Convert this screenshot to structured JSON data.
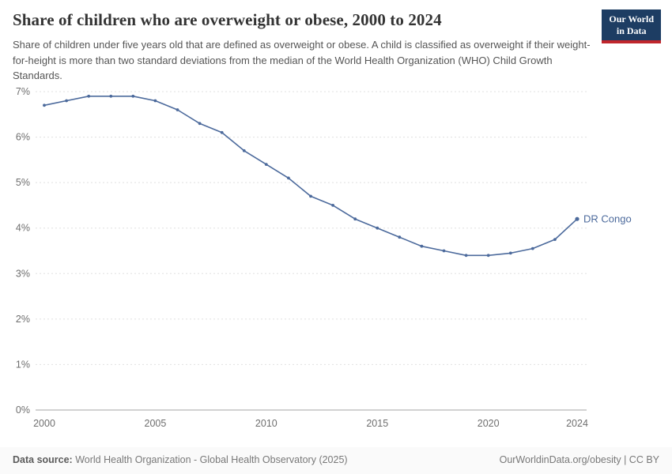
{
  "header": {
    "title": "Share of children who are overweight or obese, 2000 to 2024",
    "subtitle": "Share of children under five years old that are defined as overweight or obese. A child is classified as overweight if their weight-for-height is more than two standard deviations from the median of the World Health Organization (WHO) Child Growth Standards.",
    "logo": {
      "line1": "Our World",
      "line2": "in Data"
    }
  },
  "chart_data": {
    "type": "line",
    "title": "Share of children who are overweight or obese, 2000 to 2024",
    "xlabel": "",
    "ylabel": "",
    "xlim": [
      2000,
      2024
    ],
    "ylim": [
      0,
      7
    ],
    "x_ticks": [
      2000,
      2005,
      2010,
      2015,
      2020,
      2024
    ],
    "y_ticks": [
      0,
      1,
      2,
      3,
      4,
      5,
      6,
      7
    ],
    "y_tick_suffix": "%",
    "grid": "horizontal-dashed",
    "legend_position": "end-of-line-label",
    "series": [
      {
        "name": "DR Congo",
        "color": "#4c6a9c",
        "x": [
          2000,
          2001,
          2002,
          2003,
          2004,
          2005,
          2006,
          2007,
          2008,
          2009,
          2010,
          2011,
          2012,
          2013,
          2014,
          2015,
          2016,
          2017,
          2018,
          2019,
          2020,
          2021,
          2022,
          2023,
          2024
        ],
        "values": [
          6.7,
          6.8,
          6.9,
          6.9,
          6.9,
          6.8,
          6.6,
          6.3,
          6.1,
          5.7,
          5.4,
          5.1,
          4.7,
          4.5,
          4.2,
          4.0,
          3.8,
          3.6,
          3.5,
          3.4,
          3.4,
          3.45,
          3.55,
          3.75,
          4.2
        ]
      }
    ]
  },
  "footer": {
    "source_label": "Data source:",
    "source_text": " World Health Organization - Global Health Observatory (2025)",
    "attribution": "OurWorldinData.org/obesity | CC BY"
  }
}
